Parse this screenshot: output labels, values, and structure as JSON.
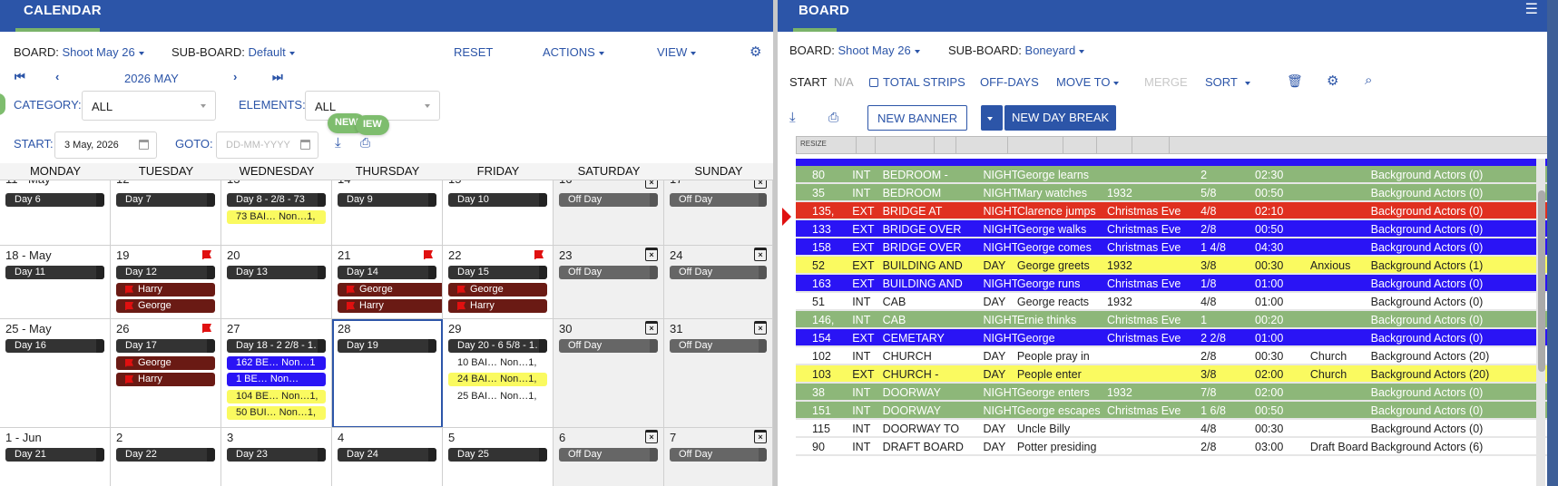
{
  "calendar": {
    "title": "CALENDAR",
    "board_label": "BOARD:",
    "board_value": "Shoot May 26",
    "subboard_label": "SUB-BOARD:",
    "subboard_value": "Default",
    "reset": "RESET",
    "actions": "ACTIONS",
    "view": "VIEW",
    "month_label": "2026 MAY",
    "category_label": "CATEGORY:",
    "category_value": "ALL",
    "elements_label": "ELEMENTS:",
    "elements_value": "ALL",
    "start_label": "START:",
    "start_value": "3 May, 2026",
    "goto_label": "GOTO:",
    "goto_placeholder": "DD-MM-YYYY",
    "new_badge_1": "NEW",
    "new_badge_2": "IEW",
    "weekdays": [
      "MONDAY",
      "TUESDAY",
      "WEDNESDAY",
      "THURSDAY",
      "FRIDAY",
      "SATURDAY",
      "SUNDAY"
    ],
    "weeks": [
      {
        "days": [
          {
            "num": "11 - May",
            "bars": [
              {
                "type": "dark",
                "text": "Day 6"
              }
            ]
          },
          {
            "num": "12",
            "bars": [
              {
                "type": "dark",
                "text": "Day 7"
              }
            ]
          },
          {
            "num": "13",
            "bars": [
              {
                "type": "dark",
                "text": "Day 8 - 2/8 - 73"
              },
              {
                "type": "yellow",
                "text": "73    BAI… Non…1,"
              }
            ]
          },
          {
            "num": "14",
            "bars": [
              {
                "type": "dark",
                "text": "Day 9"
              }
            ]
          },
          {
            "num": "15",
            "bars": [
              {
                "type": "dark",
                "text": "Day 10"
              }
            ]
          },
          {
            "num": "16",
            "off": true,
            "bars": [
              {
                "type": "offb",
                "text": "Off Day"
              }
            ]
          },
          {
            "num": "17",
            "off": true,
            "bars": [
              {
                "type": "offb",
                "text": "Off Day"
              }
            ]
          }
        ]
      },
      {
        "days": [
          {
            "num": "18 - May",
            "bars": [
              {
                "type": "dark",
                "text": "Day 11"
              }
            ]
          },
          {
            "num": "19",
            "flag": true,
            "bars": [
              {
                "type": "dark",
                "text": "Day 12"
              },
              {
                "type": "red",
                "text": "Harry"
              },
              {
                "type": "red",
                "text": "George"
              }
            ]
          },
          {
            "num": "20",
            "bars": [
              {
                "type": "dark",
                "text": "Day 13"
              }
            ]
          },
          {
            "num": "21",
            "flag": true,
            "bars": [
              {
                "type": "dark",
                "text": "Day 14"
              },
              {
                "type": "red",
                "text": "George"
              },
              {
                "type": "red",
                "text": "Harry"
              }
            ]
          },
          {
            "num": "22",
            "flag": true,
            "bars": [
              {
                "type": "dark",
                "text": "Day 15"
              },
              {
                "type": "red",
                "text": "George"
              },
              {
                "type": "red",
                "text": "Harry"
              }
            ]
          },
          {
            "num": "23",
            "off": true,
            "bars": [
              {
                "type": "offb",
                "text": "Off Day"
              }
            ]
          },
          {
            "num": "24",
            "off": true,
            "bars": [
              {
                "type": "offb",
                "text": "Off Day"
              }
            ]
          }
        ]
      },
      {
        "days": [
          {
            "num": "25 - May",
            "bars": [
              {
                "type": "dark",
                "text": "Day 16"
              }
            ]
          },
          {
            "num": "26",
            "flag": true,
            "bars": [
              {
                "type": "dark",
                "text": "Day 17"
              },
              {
                "type": "red",
                "text": "George"
              },
              {
                "type": "red",
                "text": "Harry"
              }
            ]
          },
          {
            "num": "27",
            "bars": [
              {
                "type": "dark",
                "text": "Day 18 - 2 2/8 - 1…"
              },
              {
                "type": "blue-s",
                "text": "162  BE…  Non…1"
              },
              {
                "type": "blue-s",
                "text": "1      BE…  Non…"
              },
              {
                "type": "yellow",
                "text": "104  BE…  Non…1,"
              },
              {
                "type": "yellow",
                "text": "50    BUI… Non…1,"
              }
            ]
          },
          {
            "num": "28",
            "today": true,
            "bars": [
              {
                "type": "dark",
                "text": "Day 19"
              }
            ]
          },
          {
            "num": "29",
            "bars": [
              {
                "type": "dark",
                "text": "Day 20 - 6 5/8 - 1…"
              },
              {
                "type": "plain",
                "text": "10    BAI… Non…1,"
              },
              {
                "type": "yellow",
                "text": "24    BAI… Non…1,"
              },
              {
                "type": "plain",
                "text": "25    BAI… Non…1,"
              }
            ]
          },
          {
            "num": "30",
            "off": true,
            "bars": [
              {
                "type": "offb",
                "text": "Off Day"
              }
            ]
          },
          {
            "num": "31",
            "off": true,
            "bars": [
              {
                "type": "offb",
                "text": "Off Day"
              }
            ]
          }
        ]
      },
      {
        "days": [
          {
            "num": "1 - Jun",
            "bars": [
              {
                "type": "dark",
                "text": "Day 21"
              }
            ]
          },
          {
            "num": "2",
            "bars": [
              {
                "type": "dark",
                "text": "Day 22"
              }
            ]
          },
          {
            "num": "3",
            "bars": [
              {
                "type": "dark",
                "text": "Day 23"
              }
            ]
          },
          {
            "num": "4",
            "bars": [
              {
                "type": "dark",
                "text": "Day 24"
              }
            ]
          },
          {
            "num": "5",
            "bars": [
              {
                "type": "dark",
                "text": "Day 25"
              }
            ]
          },
          {
            "num": "6",
            "off": true,
            "bars": [
              {
                "type": "offb",
                "text": "Off Day"
              }
            ]
          },
          {
            "num": "7",
            "off": true,
            "bars": [
              {
                "type": "offb",
                "text": "Off Day"
              }
            ]
          }
        ]
      }
    ]
  },
  "board": {
    "title": "BOARD",
    "board_label": "BOARD:",
    "board_value": "Shoot May 26",
    "subboard_label": "SUB-BOARD:",
    "subboard_value": "Boneyard",
    "start_label": "START",
    "start_value": "N/A",
    "total_strips": "TOTAL STRIPS",
    "off_days": "OFF-DAYS",
    "move_to": "MOVE TO",
    "merge": "MERGE",
    "sort": "SORT",
    "new_banner": "NEW BANNER",
    "new_day_break": "NEW DAY BREAK",
    "resize_label": "RESIZE",
    "rows": [
      {
        "color": "green",
        "cells": [
          "80",
          "INT",
          "BEDROOM -",
          "NIGHT",
          "George learns",
          "",
          "2",
          "02:30",
          "",
          "Background Actors (0)"
        ]
      },
      {
        "color": "green",
        "cells": [
          "35",
          "INT",
          "BEDROOM",
          "NIGHT",
          "Mary watches",
          "1932",
          "5/8",
          "00:50",
          "",
          "Background Actors (0)"
        ]
      },
      {
        "color": "red",
        "cells": [
          "135,",
          "EXT",
          "BRIDGE AT",
          "NIGHT",
          "Clarence jumps",
          "Christmas Eve",
          "4/8",
          "02:10",
          "",
          "Background Actors (0)"
        ]
      },
      {
        "color": "bl",
        "cells": [
          "133",
          "EXT",
          "BRIDGE OVER",
          "NIGHT",
          "George walks",
          "Christmas Eve",
          "2/8",
          "00:50",
          "",
          "Background Actors (0)"
        ]
      },
      {
        "color": "bl",
        "cells": [
          "158",
          "EXT",
          "BRIDGE OVER",
          "NIGHT",
          "George comes",
          "Christmas Eve",
          "1 4/8",
          "04:30",
          "",
          "Background Actors (0)"
        ]
      },
      {
        "color": "yel",
        "cells": [
          "52",
          "EXT",
          "BUILDING AND",
          "DAY",
          "George greets",
          "1932",
          "3/8",
          "00:30",
          "Anxious",
          "Background Actors (1)"
        ]
      },
      {
        "color": "bl",
        "cells": [
          "163",
          "EXT",
          "BUILDING AND",
          "NIGHT",
          "George runs",
          "Christmas Eve",
          "1/8",
          "01:00",
          "",
          "Background Actors (0)"
        ]
      },
      {
        "color": "wh",
        "cells": [
          "51",
          "INT",
          "CAB",
          "DAY",
          "George reacts",
          "1932",
          "4/8",
          "01:00",
          "",
          "Background Actors (0)"
        ]
      },
      {
        "color": "green",
        "cells": [
          "146,",
          "INT",
          "CAB",
          "NIGHT",
          "Ernie thinks",
          "Christmas Eve",
          "1",
          "00:20",
          "",
          "Background Actors (0)"
        ]
      },
      {
        "color": "bl",
        "cells": [
          "154",
          "EXT",
          "CEMETARY",
          "NIGHT",
          "George",
          "Christmas Eve",
          "2 2/8",
          "01:00",
          "",
          "Background Actors (0)"
        ]
      },
      {
        "color": "wh",
        "cells": [
          "102",
          "INT",
          "CHURCH",
          "DAY",
          "People pray in",
          "",
          "2/8",
          "00:30",
          "Church",
          "Background Actors (20)"
        ]
      },
      {
        "color": "yel",
        "cells": [
          "103",
          "EXT",
          "CHURCH -",
          "DAY",
          "People enter",
          "",
          "3/8",
          "02:00",
          "Church",
          "Background Actors (20)"
        ]
      },
      {
        "color": "green",
        "cells": [
          "38",
          "INT",
          "DOORWAY",
          "NIGHT",
          "George enters",
          "1932",
          "7/8",
          "02:00",
          "",
          "Background Actors (0)"
        ]
      },
      {
        "color": "green",
        "cells": [
          "151",
          "INT",
          "DOORWAY",
          "NIGHT",
          "George escapes",
          "Christmas Eve",
          "1 6/8",
          "00:50",
          "",
          "Background Actors (0)"
        ]
      },
      {
        "color": "wh",
        "cells": [
          "115",
          "INT",
          "DOORWAY TO",
          "DAY",
          "Uncle Billy",
          "",
          "4/8",
          "00:30",
          "",
          "Background Actors (0)"
        ]
      },
      {
        "color": "wh",
        "cells": [
          "90",
          "INT",
          "DRAFT BOARD",
          "DAY",
          "Potter presiding",
          "",
          "2/8",
          "03:00",
          "Draft Board",
          "Background Actors (6)"
        ]
      }
    ]
  },
  "icons": {
    "first": "first-page-icon",
    "prev": "chevron-left-icon",
    "next": "chevron-right-icon",
    "last": "last-page-icon",
    "gear": "gear-icon",
    "download": "download-icon",
    "print": "print-icon",
    "trash": "trash-icon",
    "search": "search-icon",
    "menu": "hamburger-menu-icon"
  },
  "colors": {
    "primary": "#2c55a8",
    "accent_green": "#7ab36a",
    "strip_green": "#8db779",
    "strip_blue": "#2a14f5",
    "strip_yellow": "#fafa60",
    "strip_red": "#e03020",
    "flag_red": "#e01010"
  }
}
